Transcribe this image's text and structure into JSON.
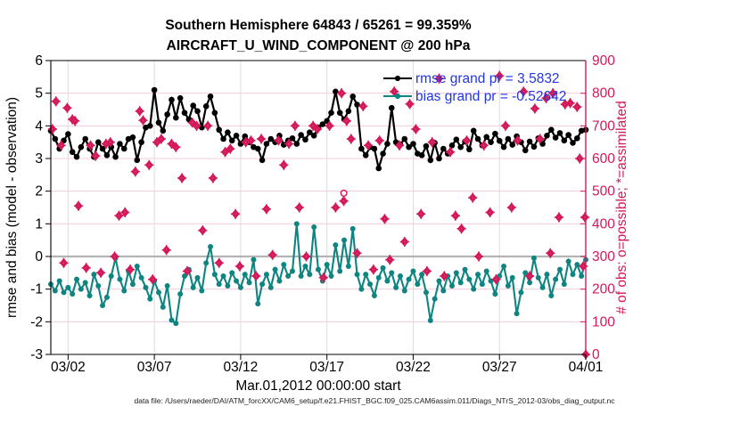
{
  "titles": {
    "line1": "Southern Hemisphere 64843 / 65261 = 99.359%",
    "line2": "AIRCRAFT_U_WIND_COMPONENT @ 200 hPa"
  },
  "footer": "data file: /Users/raeder/DAI/ATM_forcXX/CAM6_setup/f.e21.FHIST_BGC.f09_025.CAM6assim.011/Diags_NTrS_2012-03/obs_diag_output.nc",
  "chart_data": {
    "type": "line",
    "xlabel": "Mar.01,2012 00:00:00 start",
    "x_ticks": {
      "days": [
        1,
        6,
        11,
        16,
        21,
        26,
        31
      ],
      "labels": [
        "03/02",
        "03/07",
        "03/12",
        "03/17",
        "03/22",
        "03/27",
        "04/01"
      ]
    },
    "x_range_days": [
      0,
      31
    ],
    "left_axis": {
      "label": "rmse and bias (model - observation)",
      "min": -3,
      "max": 6,
      "tick_step": 1,
      "color": "#000000"
    },
    "right_axis": {
      "label": "# of obs: o=possible; *=assimilated",
      "min": 0,
      "max": 900,
      "tick_step": 100,
      "color": "#D4195A"
    },
    "grid": {
      "h_color": "#F5CCD9",
      "v_color": "#DDDDDD",
      "zero_line_color": "#B3B3B3"
    },
    "legend": [
      {
        "label": "rmse grand pr = 3.5832",
        "series": "rmse",
        "text_color": "#2236E0"
      },
      {
        "label": "bias grand pr = -0.52642",
        "series": "bias",
        "text_color": "#2236E0"
      }
    ],
    "series": {
      "rmse": {
        "color": "#000000",
        "marker": "filled-circle",
        "t_start": 0,
        "t_step": 0.25,
        "values": [
          3.85,
          3.6,
          3.3,
          3.55,
          3.75,
          3.2,
          3.05,
          3.35,
          3.6,
          3.3,
          3.05,
          3.5,
          3.3,
          3.1,
          3.35,
          3.05,
          3.45,
          3.3,
          3.6,
          3.65,
          2.95,
          3.5,
          3.95,
          4.0,
          5.1,
          4.1,
          3.85,
          4.35,
          4.8,
          4.25,
          4.85,
          4.4,
          4.2,
          4.62,
          4.45,
          3.95,
          4.6,
          4.9,
          4.4,
          3.88,
          3.6,
          3.8,
          3.55,
          3.7,
          3.45,
          3.68,
          3.5,
          3.35,
          3.3,
          2.95,
          3.45,
          3.6,
          3.5,
          3.7,
          3.42,
          3.55,
          3.62,
          3.45,
          3.72,
          3.58,
          3.8,
          3.7,
          3.95,
          4.05,
          4.15,
          4.4,
          5.05,
          4.4,
          4.2,
          4.45,
          4.9,
          4.65,
          3.3,
          3.1,
          3.35,
          3.3,
          2.7,
          3.15,
          3.45,
          4.55,
          3.5,
          3.43,
          3.6,
          3.35,
          3.45,
          3.15,
          3.1,
          3.38,
          2.95,
          3.48,
          3.0,
          3.3,
          3.15,
          3.4,
          3.58,
          3.35,
          3.52,
          3.28,
          3.85,
          3.6,
          3.4,
          3.66,
          3.5,
          3.76,
          3.54,
          3.35,
          3.6,
          3.42,
          3.68,
          3.5,
          3.25,
          3.52,
          3.36,
          3.62,
          3.45,
          3.7,
          3.88,
          3.64,
          3.78,
          3.55,
          3.72,
          3.48,
          3.62,
          3.85,
          3.88
        ]
      },
      "bias": {
        "color": "#0F8582",
        "marker": "filled-circle",
        "t_start": 0,
        "t_step": 0.25,
        "values": [
          -0.85,
          -1.05,
          -0.75,
          -1.1,
          -0.95,
          -1.15,
          -0.7,
          -1.0,
          -0.8,
          -1.2,
          -0.55,
          -0.9,
          -1.5,
          -1.25,
          -0.6,
          -0.05,
          -0.7,
          -1.05,
          -0.45,
          -0.85,
          -0.3,
          -0.65,
          -0.95,
          -1.3,
          -0.75,
          -1.1,
          -1.55,
          -0.9,
          -1.95,
          -2.05,
          -1.15,
          -0.6,
          -0.4,
          -0.95,
          -0.65,
          -1.05,
          -0.2,
          0.3,
          -0.55,
          -0.85,
          -0.6,
          -0.9,
          -0.5,
          -0.75,
          -0.95,
          -0.55,
          -0.8,
          -0.1,
          -1.45,
          -0.85,
          -0.55,
          -0.95,
          -0.4,
          -0.75,
          -0.25,
          -0.6,
          -0.45,
          1.0,
          -0.6,
          -0.3,
          -0.55,
          0.9,
          -0.4,
          -0.75,
          -0.25,
          -0.6,
          0.35,
          -0.45,
          0.5,
          -0.3,
          0.85,
          -0.55,
          -1.0,
          -0.55,
          -0.85,
          -1.2,
          -0.65,
          -0.35,
          -0.75,
          -0.5,
          -0.95,
          -0.6,
          -1.05,
          -0.7,
          -0.45,
          -0.85,
          -0.55,
          -1.1,
          -1.96,
          -1.3,
          -0.75,
          -1.05,
          -0.6,
          -0.9,
          -0.5,
          -0.8,
          -0.4,
          -0.7,
          -1.0,
          -0.55,
          -0.85,
          -0.45,
          -0.75,
          -1.15,
          -0.6,
          -0.3,
          -0.9,
          -0.65,
          -1.75,
          -1.1,
          -0.5,
          -0.8,
          -0.05,
          -0.65,
          -0.95,
          -0.55,
          -1.2,
          -0.7,
          -0.4,
          -0.85,
          -0.15,
          -0.55,
          -0.25,
          -0.6,
          -0.1
        ]
      },
      "obs": {
        "color": "#D4195A",
        "marker": "star-circle",
        "t": [
          0.1,
          0.3,
          0.6,
          0.75,
          0.95,
          1.25,
          1.4,
          1.6,
          2.05,
          2.3,
          2.6,
          2.9,
          3.2,
          3.45,
          3.7,
          3.95,
          4.3,
          4.6,
          4.9,
          5.15,
          5.35,
          5.7,
          5.9,
          6.15,
          6.4,
          6.7,
          7.0,
          7.25,
          7.6,
          7.9,
          8.2,
          8.45,
          8.8,
          9.1,
          9.4,
          9.75,
          10.1,
          10.4,
          10.7,
          10.95,
          11.3,
          11.6,
          11.9,
          12.2,
          12.5,
          12.85,
          13.2,
          13.5,
          13.8,
          14.15,
          14.4,
          14.8,
          15.2,
          15.45,
          15.8,
          16.15,
          16.5,
          16.85,
          17.15,
          17.4,
          17.75,
          18.1,
          18.4,
          18.7,
          19.05,
          19.35,
          19.65,
          19.9,
          20.2,
          20.5,
          20.8,
          21.15,
          21.45,
          21.8,
          22.1,
          22.5,
          22.8,
          23.15,
          23.45,
          23.8,
          24.1,
          24.45,
          24.8,
          25.1,
          25.45,
          25.8,
          26.0,
          26.35,
          26.7,
          27.05,
          27.4,
          27.75,
          28.05,
          28.35,
          28.7,
          28.95,
          29.1,
          29.45,
          29.8,
          30.1,
          30.5,
          30.65,
          30.85,
          30.95,
          31.0
        ],
        "values": [
          690,
          775,
          640,
          280,
          755,
          720,
          715,
          455,
          265,
          640,
          608,
          250,
          645,
          650,
          300,
          425,
          435,
          260,
          560,
          745,
          717,
          580,
          230,
          650,
          660,
          320,
          645,
          635,
          540,
          255,
          710,
          700,
          380,
          700,
          540,
          280,
          620,
          630,
          430,
          270,
          650,
          655,
          240,
          660,
          445,
          305,
          655,
          580,
          645,
          700,
          450,
          300,
          700,
          690,
          235,
          700,
          450,
          800,
          715,
          660,
          310,
          760,
          640,
          260,
          655,
          415,
          290,
          805,
          640,
          345,
          767,
          690,
          430,
          255,
          650,
          845,
          240,
          620,
          425,
          385,
          655,
          480,
          300,
          640,
          435,
          230,
          853,
          700,
          450,
          655,
          805,
          240,
          753,
          660,
          785,
          310,
          800,
          420,
          766,
          770,
          758,
          600,
          270,
          420,
          0
        ],
        "outlier": {
          "t": 16.98,
          "possible": 494,
          "assimilated": 470
        }
      }
    }
  }
}
